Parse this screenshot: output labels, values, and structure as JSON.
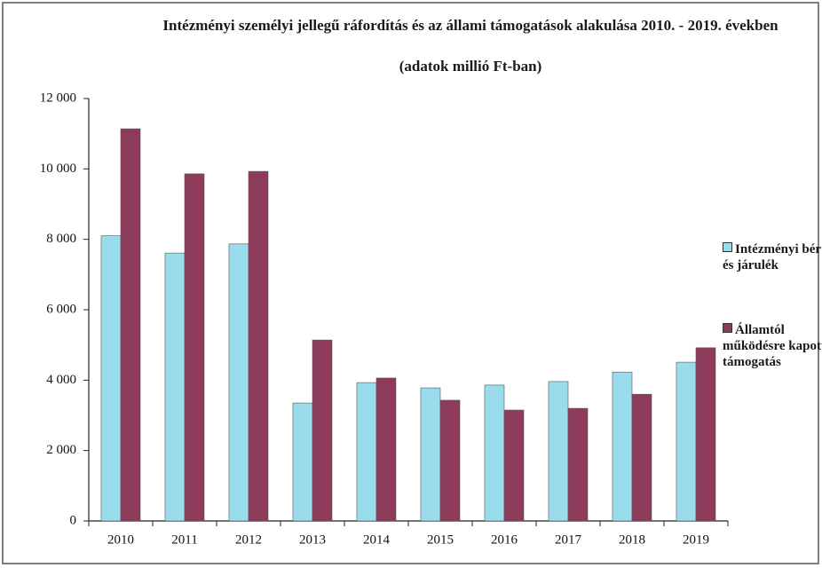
{
  "chart_data": {
    "type": "bar",
    "title": "Intézményi személyi jellegű ráfordítás és az állami támogatások alakulása 2010. - 2019. években",
    "subtitle": "(adatok millió Ft-ban)",
    "categories": [
      "2010",
      "2011",
      "2012",
      "2013",
      "2014",
      "2015",
      "2016",
      "2017",
      "2018",
      "2019"
    ],
    "series": [
      {
        "name": "Intézményi bér és járulék",
        "color": "#9adcec",
        "values": [
          8100,
          7610,
          7870,
          3350,
          3930,
          3780,
          3860,
          3960,
          4230,
          4510
        ]
      },
      {
        "name": "Államtól működésre kapott támogatás",
        "color": "#8e3a5a",
        "values": [
          11140,
          9860,
          9930,
          5140,
          4060,
          3430,
          3150,
          3200,
          3600,
          4920
        ]
      }
    ],
    "ylim": [
      0,
      12000
    ],
    "yticks": [
      0,
      {
        "value": 2000,
        "label": "2 000"
      },
      {
        "value": 4000,
        "label": "4 000"
      },
      {
        "value": 6000,
        "label": "6 000"
      },
      {
        "value": 8000,
        "label": "8 000"
      },
      {
        "value": 10000,
        "label": "10 000"
      },
      {
        "value": 12000,
        "label": "12 000"
      }
    ],
    "grid": false
  }
}
